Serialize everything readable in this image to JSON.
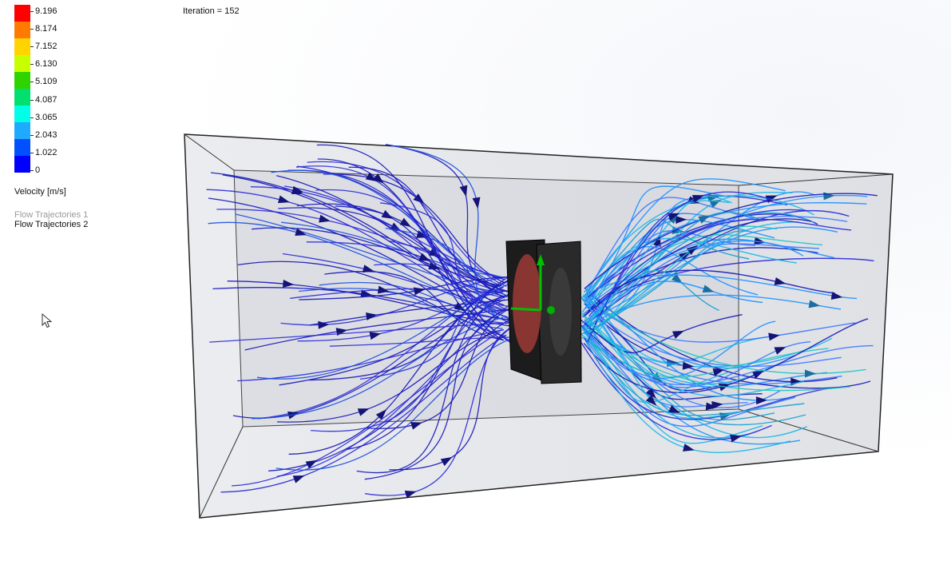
{
  "legend": {
    "ticks": [
      "9.196",
      "8.174",
      "7.152",
      "6.130",
      "5.109",
      "4.087",
      "3.065",
      "2.043",
      "1.022",
      "0"
    ],
    "colors": [
      "#ff0000",
      "#ff7a00",
      "#ffd400",
      "#c8ff00",
      "#2fd400",
      "#00e070",
      "#00ffe6",
      "#1eaaff",
      "#0050ff",
      "#0000ff"
    ],
    "units": "Velocity [m/s]"
  },
  "trajectories": {
    "inactive": "Flow Trajectories 1",
    "active": "Flow Trajectories 2"
  },
  "iteration": "Iteration = 152",
  "cursor_icon": "pointer-cursor-icon"
}
